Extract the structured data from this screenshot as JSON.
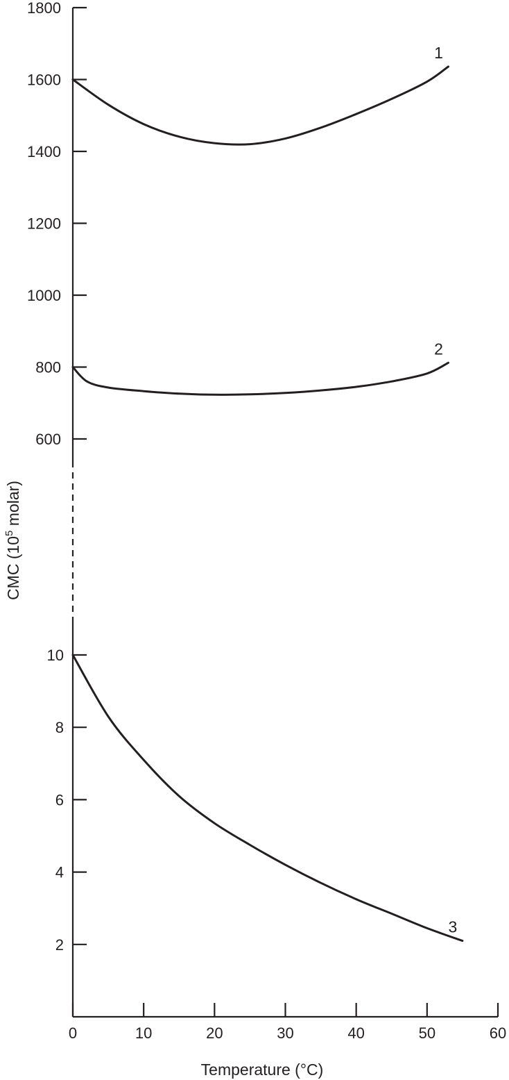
{
  "chart_data": {
    "type": "line",
    "xlabel": "Temperature (°C)",
    "ylabel": {
      "main": "CMC (10",
      "superscript": "5",
      "suffix": " molar)"
    },
    "xlim": [
      0,
      60
    ],
    "x_ticks": [
      0,
      10,
      20,
      30,
      40,
      50,
      60
    ],
    "y_axis_broken": true,
    "y_upper": {
      "ylim": [
        600,
        1800
      ],
      "ticks": [
        600,
        800,
        1000,
        1200,
        1400,
        1600,
        1800
      ]
    },
    "y_lower": {
      "ylim": [
        0,
        10
      ],
      "ticks": [
        2,
        4,
        6,
        8,
        10
      ]
    },
    "grid": false,
    "legend": "none",
    "series": [
      {
        "label": "1",
        "segment": "upper",
        "x": [
          0,
          5,
          10,
          15,
          20,
          25,
          30,
          35,
          40,
          45,
          50,
          53
        ],
        "y": [
          1600,
          1530,
          1476,
          1441,
          1423,
          1420,
          1436,
          1466,
          1504,
          1546,
          1594,
          1636
        ]
      },
      {
        "label": "2",
        "segment": "upper",
        "x": [
          0,
          2,
          5,
          10,
          15,
          20,
          25,
          30,
          35,
          40,
          45,
          50,
          53
        ],
        "y": [
          800,
          760,
          743,
          733,
          726,
          723,
          724,
          728,
          735,
          745,
          760,
          782,
          812
        ]
      },
      {
        "label": "3",
        "segment": "lower",
        "x": [
          0,
          5,
          10,
          15,
          20,
          25,
          30,
          35,
          40,
          45,
          50,
          55
        ],
        "y": [
          10,
          8.3,
          7.1,
          6.1,
          5.35,
          4.75,
          4.2,
          3.7,
          3.25,
          2.85,
          2.45,
          2.1
        ]
      }
    ]
  }
}
